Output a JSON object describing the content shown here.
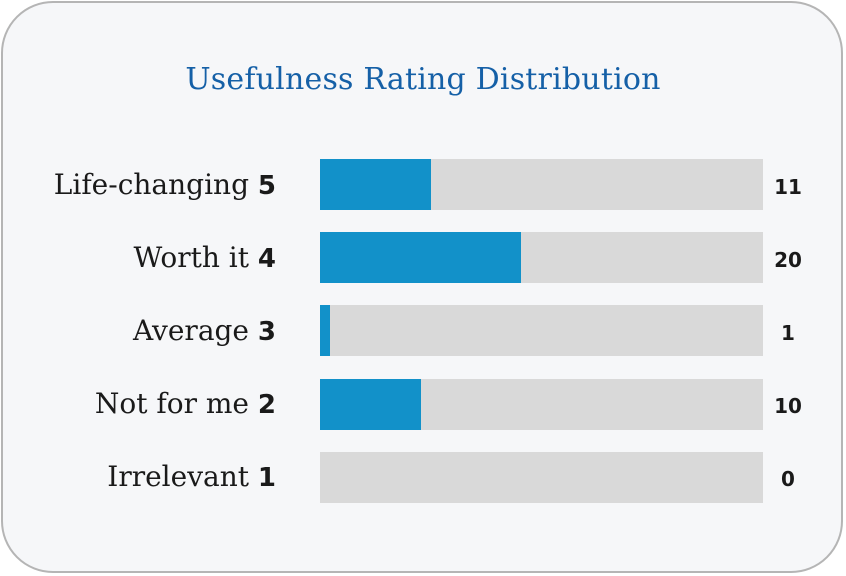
{
  "chart_data": {
    "type": "bar",
    "orientation": "horizontal",
    "title": "Usefulness Rating Distribution",
    "xlim": [
      0,
      44
    ],
    "colors": {
      "fill": "#1291c9",
      "track": "#d9d9d9",
      "title": "#1560a7"
    },
    "rows": [
      {
        "name": "Life-changing",
        "rating": "5",
        "value": 11,
        "value_label": "11"
      },
      {
        "name": "Worth it",
        "rating": "4",
        "value": 20,
        "value_label": "20"
      },
      {
        "name": "Average",
        "rating": "3",
        "value": 1,
        "value_label": "1"
      },
      {
        "name": "Not for me",
        "rating": "2",
        "value": 10,
        "value_label": "10"
      },
      {
        "name": "Irrelevant",
        "rating": "1",
        "value": 0,
        "value_label": "0"
      }
    ]
  }
}
